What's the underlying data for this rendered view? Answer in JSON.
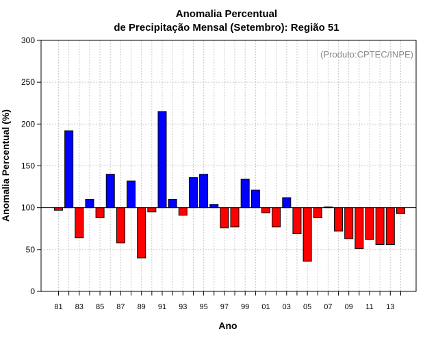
{
  "chart_data": {
    "type": "bar",
    "title_line1": "Anomalia Percentual",
    "title_line2": "de Precipitação Mensal (Setembro): Região 51",
    "xlabel": "Ano",
    "ylabel": "Anomalia Percentual (%)",
    "annotation": "(Produto:CPTEC/INPE)",
    "ylim": [
      0,
      300
    ],
    "yticks": [
      0,
      50,
      100,
      150,
      200,
      250,
      300
    ],
    "baseline": 100,
    "categories": [
      "81",
      "82",
      "83",
      "84",
      "85",
      "86",
      "87",
      "88",
      "89",
      "90",
      "91",
      "92",
      "93",
      "94",
      "95",
      "96",
      "97",
      "98",
      "99",
      "00",
      "01",
      "02",
      "03",
      "04",
      "05",
      "06",
      "07",
      "08",
      "09",
      "10",
      "11",
      "12",
      "13",
      "14"
    ],
    "values": [
      97,
      192,
      64,
      110,
      88,
      140,
      58,
      132,
      40,
      95,
      215,
      110,
      91,
      136,
      140,
      104,
      76,
      77,
      134,
      121,
      94,
      77,
      112,
      69,
      36,
      88,
      101,
      72,
      63,
      51,
      62,
      56,
      56,
      93
    ],
    "xtick_labels": [
      "81",
      "83",
      "85",
      "87",
      "89",
      "91",
      "93",
      "95",
      "97",
      "99",
      "01",
      "03",
      "05",
      "07",
      "09",
      "11",
      "13"
    ],
    "colors": {
      "above": "#0000ff",
      "below": "#ff0000",
      "grid": "#c8c8c8",
      "baseline": "#000000"
    }
  }
}
